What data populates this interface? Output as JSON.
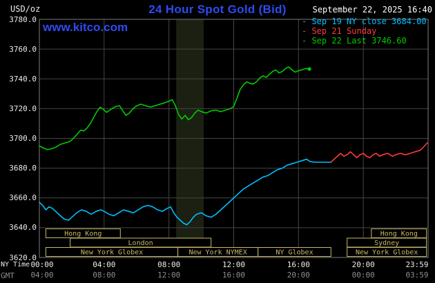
{
  "header": {
    "unit_label": "USD/oz",
    "title": "24 Hour Spot Gold (Bid)",
    "datetime": "September 22, 2025 16:40",
    "watermark": "www.kitco.com",
    "legend_marker": "-",
    "legend": [
      {
        "id": "sep19",
        "label": "Sep 19 NY close 3684.00",
        "color": "#00bfff"
      },
      {
        "id": "sep21",
        "label": "Sep 21 Sunday",
        "color": "#ff3b3b"
      },
      {
        "id": "sep22",
        "label": "Sep 22 Last 3746.60",
        "color": "#00cc00"
      }
    ]
  },
  "axes": {
    "ny_label": "NY Time",
    "gmt_label": "GMT",
    "y_ticks": [
      "3780.0",
      "3760.0",
      "3740.0",
      "3720.0",
      "3700.0",
      "3680.0",
      "3660.0",
      "3640.0",
      "3620.0"
    ],
    "y_tick_values": [
      3780,
      3760,
      3740,
      3720,
      3700,
      3680,
      3660,
      3640,
      3620
    ],
    "x_tick_hours": [
      0,
      4,
      8,
      12,
      16,
      20,
      24
    ],
    "ny_ticks": [
      "00:00",
      "04:00",
      "08:00",
      "12:00",
      "16:00",
      "20:00",
      "23:59"
    ],
    "gmt_ticks": [
      "04:00",
      "08:00",
      "12:00",
      "16:00",
      "20:00",
      "00:00",
      "03:59"
    ]
  },
  "sessions": [
    {
      "row": 0,
      "start": 0.4,
      "end": 5.0,
      "label": "Hong Kong"
    },
    {
      "row": 0,
      "start": 20.5,
      "end": 23.9,
      "label": "Hong Kong"
    },
    {
      "row": 1,
      "start": 1.9,
      "end": 10.6,
      "label": "London"
    },
    {
      "row": 1,
      "start": 19.0,
      "end": 23.9,
      "label": "Sydney"
    },
    {
      "row": 2,
      "start": 0.4,
      "end": 8.55,
      "label": "New York Globex"
    },
    {
      "row": 2,
      "start": 8.55,
      "end": 13.5,
      "label": "New York NYMEX"
    },
    {
      "row": 2,
      "start": 13.5,
      "end": 18.0,
      "label": "NY Globex"
    },
    {
      "row": 2,
      "start": 19.0,
      "end": 23.9,
      "label": "New York Globex"
    }
  ],
  "colors": {
    "background": "#000000",
    "accent_blue": "#2e4bf0",
    "grid": "#464646",
    "frame": "#7d7d7d",
    "band": "#1b2013",
    "session": "#c9b96a",
    "axis_text": "#ededed",
    "gmt_text": "#8f8f8f",
    "date_text": "#ffffff"
  },
  "chart_data": {
    "type": "line",
    "title": "24 Hour Spot Gold (Bid)",
    "ylabel": "USD/oz",
    "xlabel": "NY Time",
    "ylim": [
      3620,
      3780
    ],
    "xlim_hours": [
      0,
      24
    ],
    "grid": true,
    "legend_position": "top-right",
    "highlight_band_hours": [
      8.45,
      10.15
    ],
    "series": [
      {
        "id": "sep19",
        "name": "Sep 19 NY close",
        "color": "#00bfff",
        "close": 3684.0,
        "end_marker": false,
        "points": [
          [
            0,
            3657
          ],
          [
            0.2,
            3655
          ],
          [
            0.4,
            3652
          ],
          [
            0.6,
            3654
          ],
          [
            0.8,
            3653
          ],
          [
            1,
            3651
          ],
          [
            1.2,
            3649
          ],
          [
            1.5,
            3646
          ],
          [
            1.8,
            3645
          ],
          [
            2,
            3647
          ],
          [
            2.3,
            3650
          ],
          [
            2.6,
            3652
          ],
          [
            2.9,
            3651
          ],
          [
            3.2,
            3649
          ],
          [
            3.5,
            3651
          ],
          [
            3.8,
            3652
          ],
          [
            4,
            3651
          ],
          [
            4.3,
            3649
          ],
          [
            4.6,
            3648
          ],
          [
            4.9,
            3650
          ],
          [
            5.2,
            3652
          ],
          [
            5.5,
            3651
          ],
          [
            5.8,
            3650
          ],
          [
            6.1,
            3652
          ],
          [
            6.4,
            3654
          ],
          [
            6.7,
            3655
          ],
          [
            7,
            3654
          ],
          [
            7.3,
            3652
          ],
          [
            7.6,
            3651
          ],
          [
            7.9,
            3653
          ],
          [
            8.1,
            3654
          ],
          [
            8.3,
            3650
          ],
          [
            8.5,
            3647
          ],
          [
            8.7,
            3645
          ],
          [
            8.9,
            3643
          ],
          [
            9.1,
            3642
          ],
          [
            9.3,
            3644
          ],
          [
            9.5,
            3647
          ],
          [
            9.7,
            3649
          ],
          [
            10,
            3650
          ],
          [
            10.3,
            3648
          ],
          [
            10.6,
            3647
          ],
          [
            10.9,
            3649
          ],
          [
            11.2,
            3652
          ],
          [
            11.5,
            3655
          ],
          [
            11.8,
            3658
          ],
          [
            12,
            3660
          ],
          [
            12.3,
            3663
          ],
          [
            12.6,
            3666
          ],
          [
            12.9,
            3668
          ],
          [
            13.2,
            3670
          ],
          [
            13.5,
            3672
          ],
          [
            13.8,
            3674
          ],
          [
            14.1,
            3675
          ],
          [
            14.4,
            3677
          ],
          [
            14.7,
            3679
          ],
          [
            15,
            3680
          ],
          [
            15.3,
            3682
          ],
          [
            15.6,
            3683
          ],
          [
            15.9,
            3684
          ],
          [
            16.2,
            3685
          ],
          [
            16.5,
            3686
          ],
          [
            16.7,
            3684.5
          ],
          [
            17,
            3684
          ],
          [
            17.5,
            3684
          ],
          [
            18,
            3684
          ]
        ]
      },
      {
        "id": "sep21",
        "name": "Sep 21 Sunday",
        "color": "#ff3b3b",
        "end_marker": false,
        "points": [
          [
            18,
            3684
          ],
          [
            18.2,
            3686
          ],
          [
            18.4,
            3688
          ],
          [
            18.6,
            3690
          ],
          [
            18.8,
            3688
          ],
          [
            19,
            3689
          ],
          [
            19.2,
            3691
          ],
          [
            19.4,
            3689
          ],
          [
            19.6,
            3687
          ],
          [
            19.8,
            3689
          ],
          [
            20,
            3690
          ],
          [
            20.2,
            3688
          ],
          [
            20.4,
            3687
          ],
          [
            20.6,
            3689
          ],
          [
            20.8,
            3690
          ],
          [
            21,
            3688
          ],
          [
            21.2,
            3689
          ],
          [
            21.5,
            3690
          ],
          [
            21.8,
            3688
          ],
          [
            22,
            3689
          ],
          [
            22.3,
            3690
          ],
          [
            22.6,
            3689
          ],
          [
            22.9,
            3690
          ],
          [
            23.2,
            3691
          ],
          [
            23.5,
            3692
          ],
          [
            23.7,
            3694
          ],
          [
            23.95,
            3697
          ]
        ]
      },
      {
        "id": "sep22",
        "name": "Sep 22",
        "color": "#00cc00",
        "last": 3746.6,
        "end_marker": true,
        "points": [
          [
            0,
            3695
          ],
          [
            0.25,
            3693.5
          ],
          [
            0.5,
            3692.5
          ],
          [
            0.75,
            3693
          ],
          [
            1,
            3694
          ],
          [
            1.3,
            3696
          ],
          [
            1.6,
            3697
          ],
          [
            1.9,
            3698
          ],
          [
            2.1,
            3700
          ],
          [
            2.35,
            3703
          ],
          [
            2.55,
            3705.5
          ],
          [
            2.75,
            3705
          ],
          [
            2.95,
            3707
          ],
          [
            3.15,
            3710
          ],
          [
            3.35,
            3714
          ],
          [
            3.55,
            3718
          ],
          [
            3.75,
            3721
          ],
          [
            3.95,
            3719.5
          ],
          [
            4.15,
            3717.5
          ],
          [
            4.35,
            3719
          ],
          [
            4.55,
            3720.5
          ],
          [
            4.75,
            3721.5
          ],
          [
            4.95,
            3722
          ],
          [
            5.15,
            3718.5
          ],
          [
            5.35,
            3715.5
          ],
          [
            5.55,
            3717
          ],
          [
            5.75,
            3719.5
          ],
          [
            5.95,
            3721.5
          ],
          [
            6.25,
            3723
          ],
          [
            6.55,
            3722
          ],
          [
            6.85,
            3721
          ],
          [
            7.15,
            3722
          ],
          [
            7.45,
            3723
          ],
          [
            7.75,
            3724
          ],
          [
            8,
            3725
          ],
          [
            8.2,
            3726
          ],
          [
            8.4,
            3722
          ],
          [
            8.6,
            3716
          ],
          [
            8.8,
            3713
          ],
          [
            9,
            3715.5
          ],
          [
            9.2,
            3712.5
          ],
          [
            9.4,
            3714
          ],
          [
            9.6,
            3717
          ],
          [
            9.8,
            3719
          ],
          [
            10,
            3718
          ],
          [
            10.3,
            3717
          ],
          [
            10.6,
            3718.5
          ],
          [
            10.9,
            3719
          ],
          [
            11.2,
            3718
          ],
          [
            11.5,
            3719
          ],
          [
            11.8,
            3720
          ],
          [
            12,
            3721.5
          ],
          [
            12.2,
            3727
          ],
          [
            12.4,
            3733
          ],
          [
            12.6,
            3736
          ],
          [
            12.8,
            3738
          ],
          [
            13,
            3737
          ],
          [
            13.2,
            3736.5
          ],
          [
            13.4,
            3738
          ],
          [
            13.6,
            3740.5
          ],
          [
            13.8,
            3742
          ],
          [
            14,
            3741
          ],
          [
            14.2,
            3743
          ],
          [
            14.4,
            3745
          ],
          [
            14.6,
            3746
          ],
          [
            14.8,
            3744
          ],
          [
            15,
            3745
          ],
          [
            15.2,
            3747
          ],
          [
            15.4,
            3748
          ],
          [
            15.6,
            3746
          ],
          [
            15.8,
            3744.5
          ],
          [
            16,
            3745.5
          ],
          [
            16.2,
            3746
          ],
          [
            16.45,
            3747
          ],
          [
            16.67,
            3746.6
          ]
        ]
      }
    ]
  }
}
